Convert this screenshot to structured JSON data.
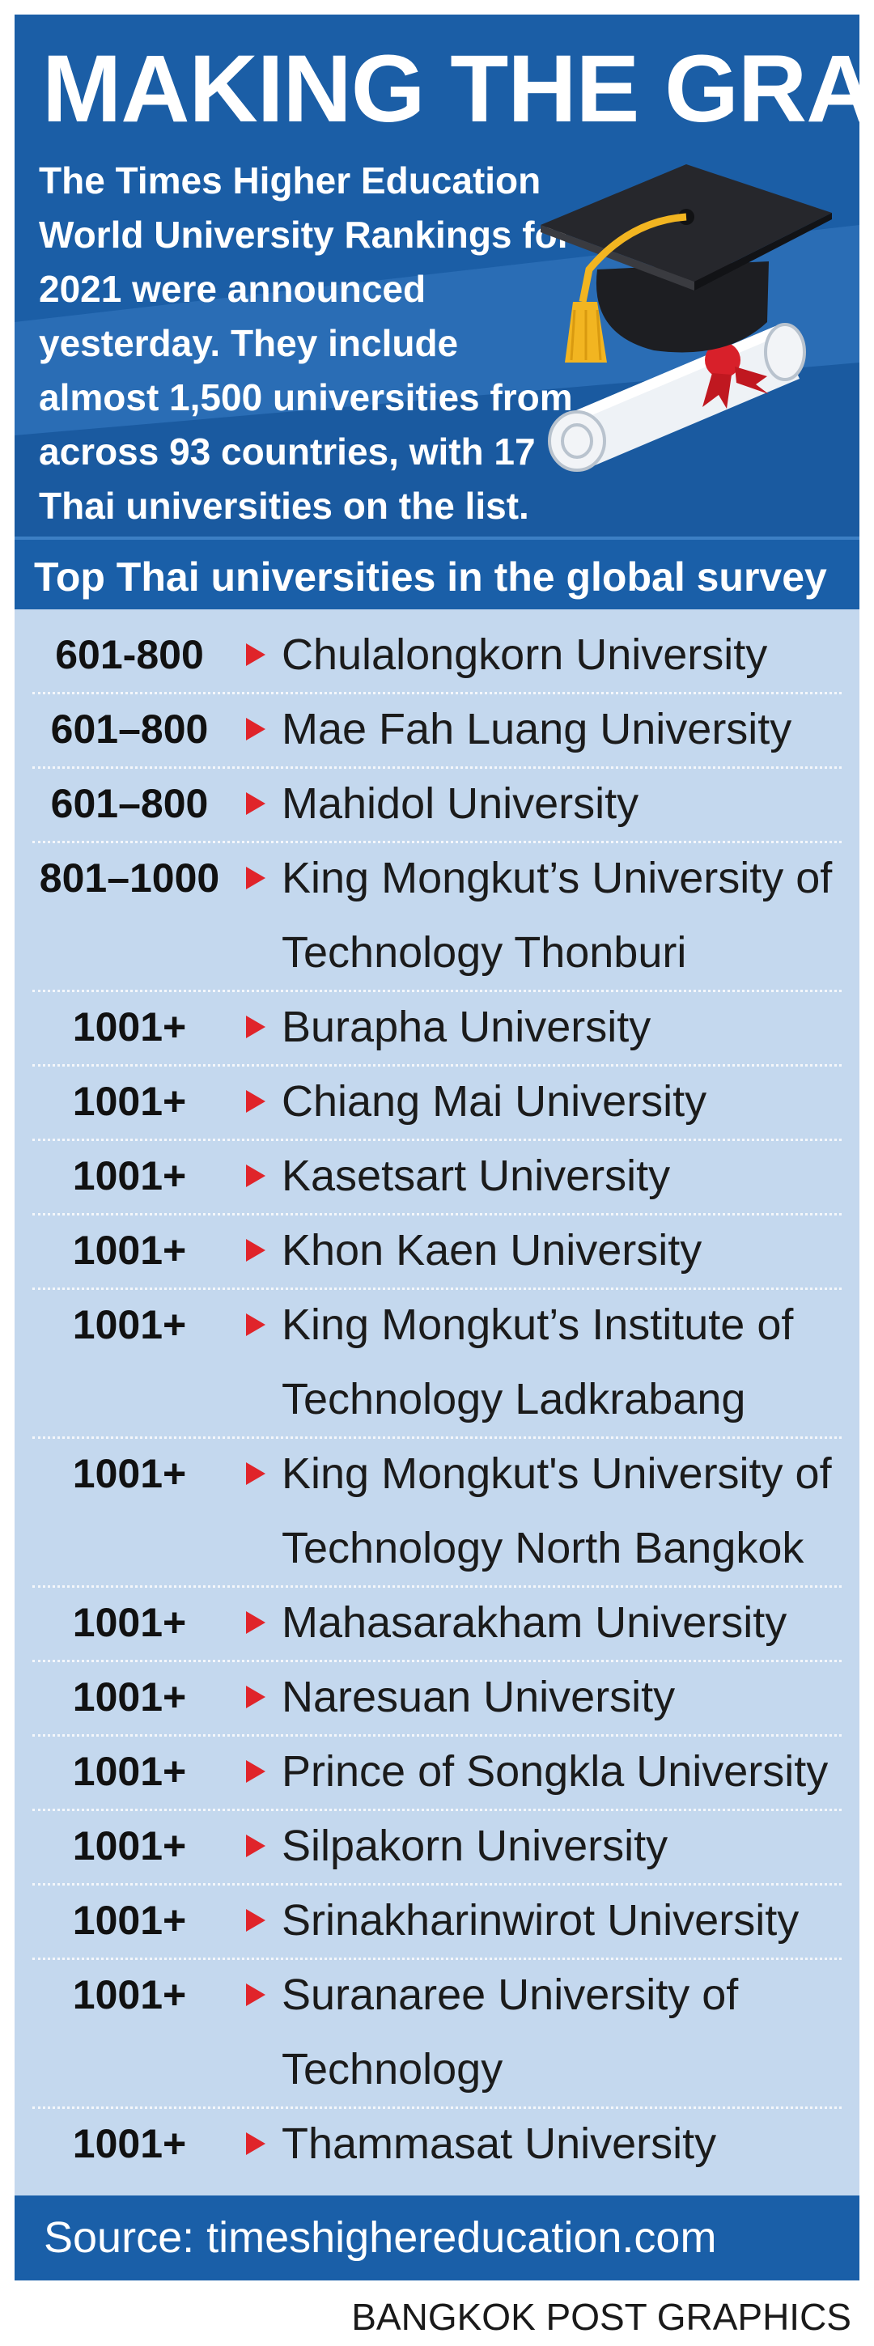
{
  "header": {
    "title": "MAKING THE GRADE",
    "intro": "The Times Higher Education World University Rankings for 2021 were announced yesterday. They include almost 1,500 universities from across 93 countries, with 17 Thai universities on the list.",
    "colors": {
      "band": "#1a5fa8",
      "accent_arrow": "#e0242a",
      "table_bg": "#c4d8ee"
    },
    "art_icon": "graduation-cap-and-diploma-icon"
  },
  "section": {
    "heading": "Top Thai universities in the global survey"
  },
  "rows": [
    {
      "rank": "601-800",
      "name": "Chulalongkorn University"
    },
    {
      "rank": "601–800",
      "name": "Mae Fah Luang University"
    },
    {
      "rank": "601–800",
      "name": "Mahidol University"
    },
    {
      "rank": "801–1000",
      "name": "King Mongkut’s University of Technology Thonburi"
    },
    {
      "rank": "1001+",
      "name": "Burapha University"
    },
    {
      "rank": "1001+",
      "name": "Chiang Mai University"
    },
    {
      "rank": "1001+",
      "name": "Kasetsart University"
    },
    {
      "rank": "1001+",
      "name": "Khon Kaen University"
    },
    {
      "rank": "1001+",
      "name": "King Mongkut’s Institute of Technology Ladkrabang"
    },
    {
      "rank": "1001+",
      "name": "King Mongkut's University of Technology North Bangkok"
    },
    {
      "rank": "1001+",
      "name": "Mahasarakham University"
    },
    {
      "rank": "1001+",
      "name": "Naresuan University"
    },
    {
      "rank": "1001+",
      "name": "Prince of Songkla University"
    },
    {
      "rank": "1001+",
      "name": "Silpakorn University"
    },
    {
      "rank": "1001+",
      "name": "Srinakharinwirot University"
    },
    {
      "rank": "1001+",
      "name": "Suranaree University of Technology"
    },
    {
      "rank": "1001+",
      "name": "Thammasat University"
    }
  ],
  "footer": {
    "source": "Source: timeshighereducation.com",
    "credit": "BANGKOK POST GRAPHICS"
  }
}
